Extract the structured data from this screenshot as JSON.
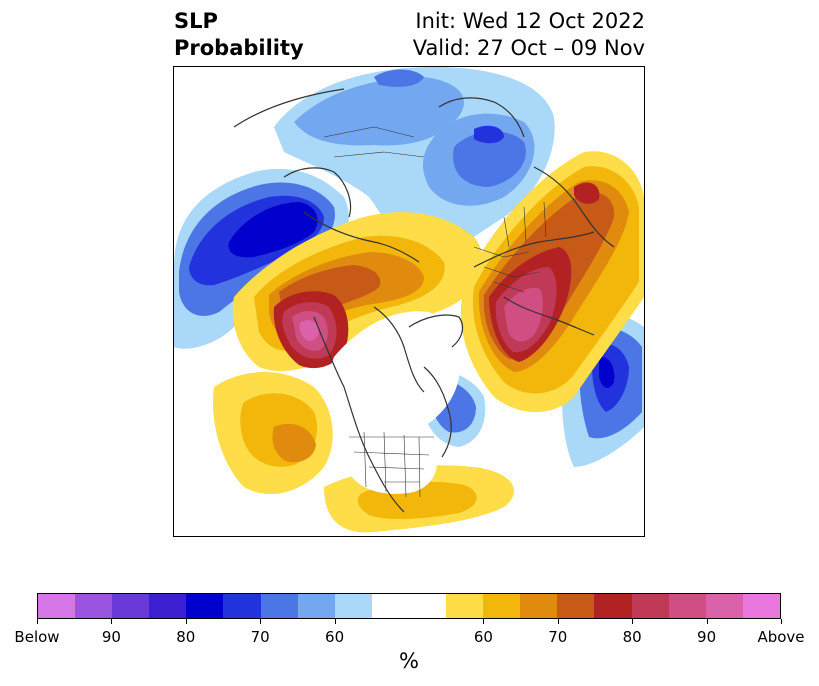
{
  "header": {
    "title_line1": "SLP",
    "title_line2": "Probability",
    "init_text": "Init: Wed 12 Oct 2022",
    "valid_text": "Valid: 27 Oct – 09 Nov"
  },
  "colorbar": {
    "colors": [
      "#d677e8",
      "#9a55e0",
      "#6a3ad8",
      "#3b1fd0",
      "#0000cc",
      "#2233dd",
      "#4c75e6",
      "#73a8f0",
      "#aad8f8",
      "#ffffff",
      "#ffffff",
      "#fedd48",
      "#f2b70a",
      "#e08a0e",
      "#c85a18",
      "#b22222",
      "#c03a58",
      "#cf4f82",
      "#da62aa",
      "#e878de"
    ],
    "labels": [
      "Below",
      "90",
      "80",
      "70",
      "60",
      "60",
      "70",
      "80",
      "90",
      "Above"
    ],
    "unit": "%"
  },
  "map": {
    "projection": "north-polar-stereographic",
    "palette": {
      "light_blue": "#aad8f8",
      "mid_blue": "#73a8f0",
      "blue": "#4c75e6",
      "deep_blue": "#2233dd",
      "navy": "#0000cc",
      "yellow": "#fedd48",
      "gold": "#f2b70a",
      "orange": "#e08a0e",
      "burnt": "#c85a18",
      "red": "#b22222",
      "rose": "#c03a58",
      "pink": "#cf4f82",
      "magenta": "#da62aa",
      "land_line": "#333333"
    }
  }
}
